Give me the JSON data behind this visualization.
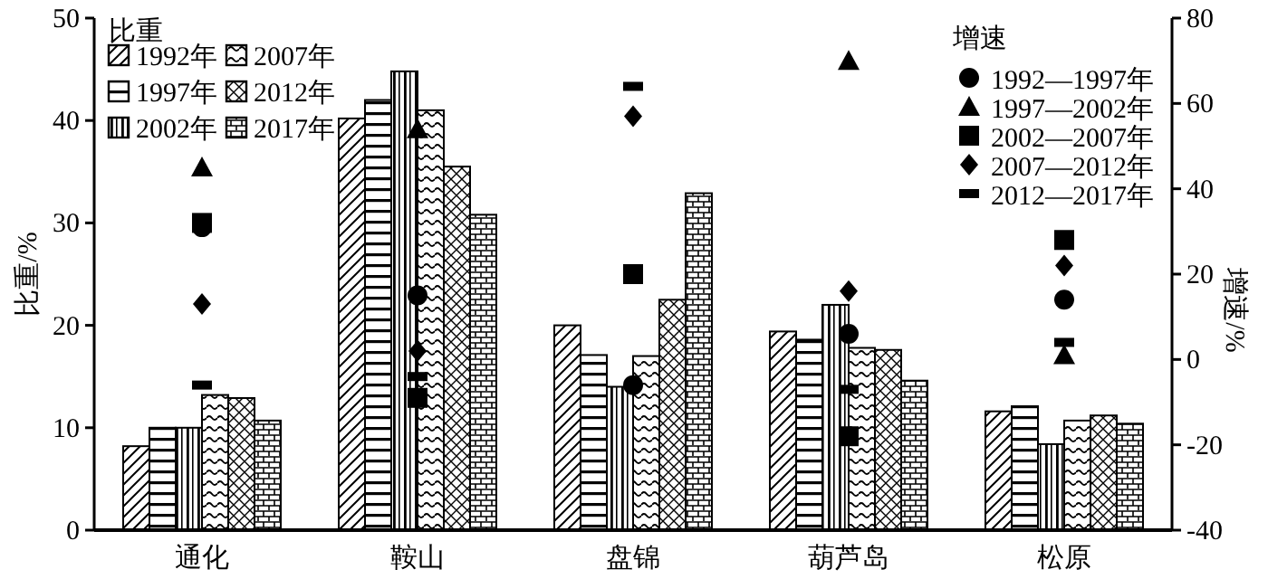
{
  "chart_data": {
    "type": "bar",
    "categories": [
      "通化",
      "鞍山",
      "盘锦",
      "葫芦岛",
      "松原"
    ],
    "ylabel": "比重/%",
    "y2label": "增速/%",
    "ylim": [
      0,
      50
    ],
    "yticks": [
      0,
      10,
      20,
      30,
      40,
      50
    ],
    "y2lim": [
      -40,
      80
    ],
    "y2ticks": [
      -40,
      -20,
      0,
      20,
      40,
      60,
      80
    ],
    "legend": "top",
    "legend_title": "比重",
    "annotations": [
      "增速"
    ],
    "series": [
      {
        "name": "1992年",
        "color": "#000000",
        "values": [
          8.2,
          40.2,
          20,
          19.4,
          11.6
        ]
      },
      {
        "name": "1997年",
        "color": "#000000",
        "values": [
          10,
          42,
          17.1,
          18.6,
          12.1
        ]
      },
      {
        "name": "2002年",
        "color": "#000000",
        "values": [
          10,
          44.8,
          14,
          22,
          8.4
        ]
      },
      {
        "name": "2007年",
        "color": "#000000",
        "values": [
          13.2,
          41,
          17,
          17.8,
          10.7
        ]
      },
      {
        "name": "2012年",
        "color": "#000000",
        "values": [
          12.9,
          35.5,
          22.5,
          17.6,
          11.2
        ]
      },
      {
        "name": "2017年",
        "color": "#000000",
        "values": [
          10.7,
          30.8,
          32.9,
          14.6,
          10.4
        ]
      },
      {
        "name": "1992—1997年",
        "type": "scatter",
        "axis": "y2",
        "marker": "circle",
        "color": "#000000",
        "values": [
          31,
          15,
          -6,
          6,
          14
        ]
      },
      {
        "name": "1997—2002年",
        "type": "scatter",
        "axis": "y2",
        "marker": "triangle",
        "color": "#000000",
        "values": [
          45,
          54,
          null,
          70,
          1
        ]
      },
      {
        "name": "2002—2007年",
        "type": "scatter",
        "axis": "y2",
        "marker": "square",
        "color": "#000000",
        "values": [
          32,
          -9,
          20,
          -18,
          28
        ]
      },
      {
        "name": "2007—2012年",
        "type": "scatter",
        "axis": "y2",
        "marker": "diamond",
        "color": "#000000",
        "values": [
          13,
          2,
          57,
          16,
          22
        ]
      },
      {
        "name": "2012—2017年",
        "type": "scatter",
        "axis": "y2",
        "color": "#000000",
        "values": [
          -6,
          -4,
          64,
          -7,
          4
        ]
      }
    ]
  }
}
